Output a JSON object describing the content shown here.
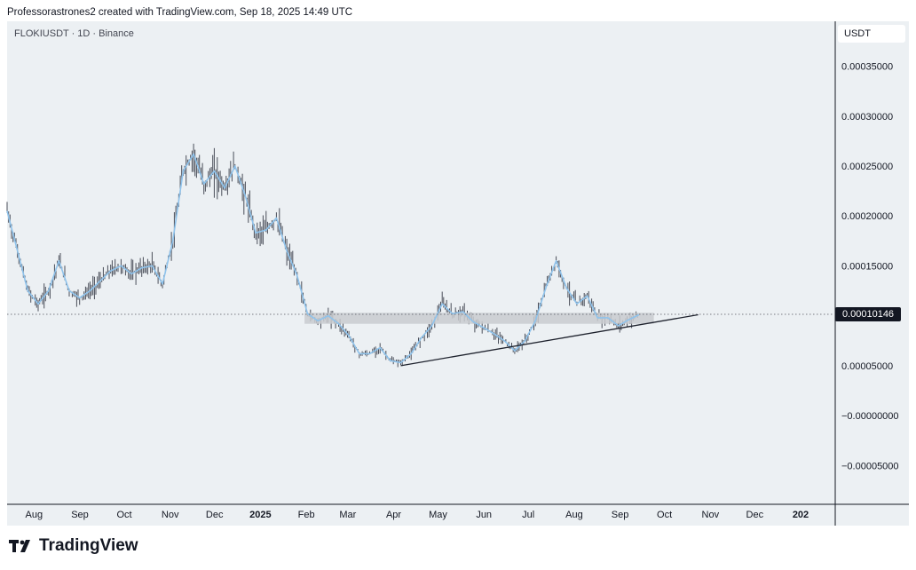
{
  "header": {
    "caption": "Professorastrones2 created with TradingView.com, Sep 18, 2025 14:49 UTC"
  },
  "chart": {
    "symbol_label": "FLOKIUSDT · 1D · Binance",
    "currency": "USDT",
    "current_price_label": "0.00010146"
  },
  "brand": {
    "name": "TradingView",
    "icon": "tradingview-logo-icon"
  },
  "colors": {
    "background": "#ecf0f3",
    "candle": "#4a4e59",
    "line": "#8fc3ec",
    "zone": "#c9cbcf",
    "trendline": "#1e222d"
  },
  "chart_data": {
    "type": "line",
    "title": "",
    "xlabel": "",
    "ylabel": "",
    "x_tick_labels": [
      "Aug",
      "Sep",
      "Oct",
      "Nov",
      "Dec",
      "2025",
      "Feb",
      "Mar",
      "Apr",
      "May",
      "Jun",
      "Jul",
      "Aug",
      "Sep",
      "Oct",
      "Nov",
      "Dec",
      "202"
    ],
    "y_tick_labels": [
      "0.00035000",
      "0.00030000",
      "0.00025000",
      "0.00020000",
      "0.00015000",
      "0.00005000",
      "−0.00000000",
      "−0.00005000"
    ],
    "y_tick_values": [
      0.00035,
      0.0003,
      0.00025,
      0.0002,
      0.00015,
      5e-05,
      0,
      -5e-05
    ],
    "ylim": [
      -8.8e-05,
      0.000395
    ],
    "x_range": [
      "2024-07-15",
      "2026-01-25"
    ],
    "x_ticks": [
      "2024-08-01",
      "2024-09-01",
      "2024-10-01",
      "2024-11-01",
      "2024-12-01",
      "2025-01-01",
      "2025-02-01",
      "2025-03-01",
      "2025-04-01",
      "2025-05-01",
      "2025-06-01",
      "2025-07-01",
      "2025-08-01",
      "2025-09-01",
      "2025-10-01",
      "2025-11-01",
      "2025-12-01",
      "2026-01-01"
    ],
    "series": [
      {
        "x": [
          "2024-07-15",
          "2024-07-22",
          "2024-07-29",
          "2024-08-05",
          "2024-08-12",
          "2024-08-19",
          "2024-08-26",
          "2024-09-02",
          "2024-09-09",
          "2024-09-16",
          "2024-09-23",
          "2024-09-30",
          "2024-10-07",
          "2024-10-14",
          "2024-10-21",
          "2024-10-28",
          "2024-11-04",
          "2024-11-11",
          "2024-11-18",
          "2024-11-25",
          "2024-12-02",
          "2024-12-09",
          "2024-12-16",
          "2024-12-23",
          "2024-12-30",
          "2025-01-06",
          "2025-01-13",
          "2025-01-20",
          "2025-01-27",
          "2025-02-03",
          "2025-02-10",
          "2025-02-17",
          "2025-02-24",
          "2025-03-03",
          "2025-03-10",
          "2025-03-17",
          "2025-03-24",
          "2025-03-31",
          "2025-04-07",
          "2025-04-14",
          "2025-04-21",
          "2025-04-28",
          "2025-05-05",
          "2025-05-12",
          "2025-05-19",
          "2025-05-26",
          "2025-06-02",
          "2025-06-09",
          "2025-06-16",
          "2025-06-23",
          "2025-06-30",
          "2025-07-07",
          "2025-07-14",
          "2025-07-21",
          "2025-07-28",
          "2025-08-04",
          "2025-08-11",
          "2025-08-18",
          "2025-08-25",
          "2025-09-01",
          "2025-09-08",
          "2025-09-15"
        ],
        "values": [
          0.000205,
          0.000165,
          0.000125,
          0.000112,
          0.000125,
          0.000155,
          0.000125,
          0.000118,
          0.000125,
          0.000135,
          0.000145,
          0.00015,
          0.000142,
          0.000148,
          0.00015,
          0.000132,
          0.000175,
          0.000245,
          0.000262,
          0.000232,
          0.000245,
          0.000228,
          0.00025,
          0.00022,
          0.000183,
          0.000186,
          0.000198,
          0.000165,
          0.00014,
          0.000102,
          9.5e-05,
          0.0001,
          9.2e-05,
          8e-05,
          6.2e-05,
          6.2e-05,
          6.8e-05,
          5.5e-05,
          5.3e-05,
          6.2e-05,
          7.8e-05,
          9e-05,
          0.000112,
          0.000102,
          0.000104,
          9.4e-05,
          8.8e-05,
          8.2e-05,
          7.5e-05,
          6.5e-05,
          7.5e-05,
          9.5e-05,
          0.000128,
          0.000155,
          0.000128,
          0.000112,
          0.00012,
          9.8e-05,
          9.8e-05,
          9e-05,
          9.6e-05,
          0.000101
        ]
      }
    ],
    "current_price": 0.00010146,
    "support_zone": {
      "from": "2025-02-01",
      "to": "2025-09-25",
      "low": 9.2e-05,
      "high": 0.000103
    },
    "trendline": [
      {
        "x": "2025-04-07",
        "y": 5e-05
      },
      {
        "x": "2025-10-25",
        "y": 0.000101
      }
    ],
    "grid": false,
    "legend": "none"
  }
}
